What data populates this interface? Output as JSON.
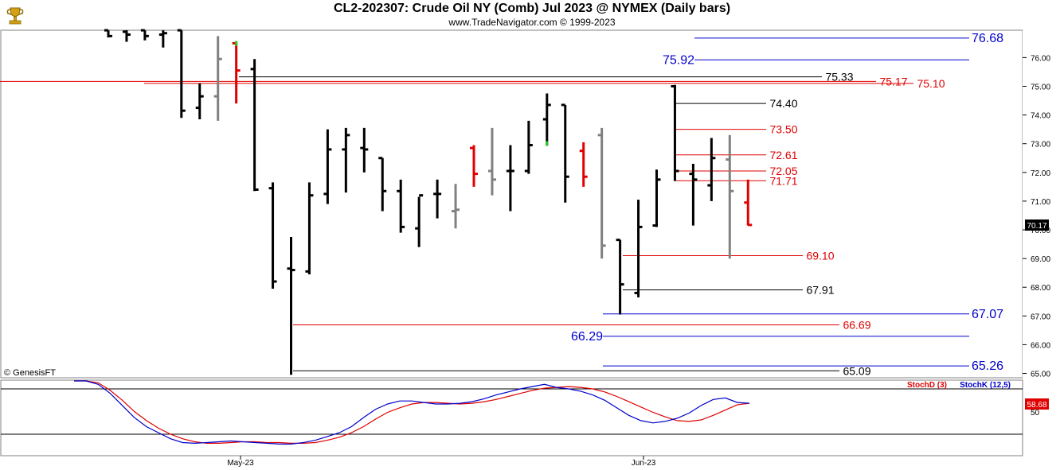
{
  "header": {
    "title": "CL2-202307:  Crude Oil NY (Comb) Jul 2023 @ NYMEX  (Daily bars)",
    "subtitle": "www.TradeNavigator.com © 1999-2023",
    "source_label": "© GenesisFT",
    "logo_icon": "trophy-logo-icon"
  },
  "colors": {
    "up_bar": "#000000",
    "neutral_bar": "#808080",
    "down_bar": "#e00000",
    "highlight_tick": "#22cc22",
    "level_black": "#000000",
    "level_red": "#e00000",
    "level_blue": "#0000cc",
    "stoch_d": "#e00000",
    "stoch_k": "#0000cc",
    "last_price_bg": "#000000",
    "stoch_value_bg": "#e00000"
  },
  "chart_data": {
    "type": "ohlc",
    "ylim": [
      64.9,
      76.9
    ],
    "y_ticks": [
      "76.00",
      "75.00",
      "74.00",
      "73.00",
      "72.00",
      "71.00",
      "70.00",
      "69.00",
      "68.00",
      "67.00",
      "66.00",
      "65.00"
    ],
    "last_price_label": "70.17",
    "x_labels": [
      "May-23",
      "Jun-23"
    ],
    "bars": [
      {
        "o": 76.95,
        "h": 76.95,
        "l": 76.7,
        "c": 76.75,
        "t": "up"
      },
      {
        "o": 76.9,
        "h": 76.95,
        "l": 76.55,
        "c": 76.8,
        "t": "up"
      },
      {
        "o": 76.95,
        "h": 76.95,
        "l": 76.6,
        "c": 76.75,
        "t": "up"
      },
      {
        "o": 76.8,
        "h": 76.95,
        "l": 76.35,
        "c": 76.85,
        "t": "up"
      },
      {
        "o": 76.95,
        "h": 76.95,
        "l": 73.9,
        "c": 74.15,
        "t": "up"
      },
      {
        "o": 74.25,
        "h": 75.1,
        "l": 73.85,
        "c": 74.65,
        "t": "up"
      },
      {
        "o": 74.65,
        "h": 76.75,
        "l": 73.8,
        "c": 75.95,
        "t": "gray"
      },
      {
        "o": 76.5,
        "h": 76.55,
        "l": 74.4,
        "c": 75.55,
        "t": "down",
        "g": "h"
      },
      {
        "o": 75.6,
        "h": 75.95,
        "l": 71.35,
        "c": 71.4,
        "t": "up"
      },
      {
        "o": 71.45,
        "h": 71.65,
        "l": 67.95,
        "c": 68.2,
        "t": "up"
      },
      {
        "o": 68.65,
        "h": 69.75,
        "l": 64.95,
        "c": 68.6,
        "t": "up"
      },
      {
        "o": 68.55,
        "h": 71.65,
        "l": 68.45,
        "c": 71.2,
        "t": "up"
      },
      {
        "o": 71.25,
        "h": 73.5,
        "l": 70.9,
        "c": 72.8,
        "t": "up"
      },
      {
        "o": 72.8,
        "h": 73.55,
        "l": 71.3,
        "c": 73.3,
        "t": "up"
      },
      {
        "o": 72.85,
        "h": 73.55,
        "l": 72.0,
        "c": 72.8,
        "t": "up"
      },
      {
        "o": 72.5,
        "h": 72.5,
        "l": 70.65,
        "c": 71.35,
        "t": "up"
      },
      {
        "o": 71.35,
        "h": 71.75,
        "l": 69.9,
        "c": 70.1,
        "t": "up"
      },
      {
        "o": 70.05,
        "h": 71.15,
        "l": 69.4,
        "c": 71.2,
        "t": "up"
      },
      {
        "o": 71.25,
        "h": 71.75,
        "l": 70.4,
        "c": 71.25,
        "t": "up"
      },
      {
        "o": 70.65,
        "h": 71.6,
        "l": 70.05,
        "c": 70.7,
        "t": "gray"
      },
      {
        "o": 72.85,
        "h": 72.95,
        "l": 71.5,
        "c": 71.95,
        "t": "down"
      },
      {
        "o": 72.05,
        "h": 73.55,
        "l": 71.2,
        "c": 71.75,
        "t": "gray"
      },
      {
        "o": 72.05,
        "h": 72.95,
        "l": 70.65,
        "c": 72.05,
        "t": "up"
      },
      {
        "o": 72.05,
        "h": 73.8,
        "l": 71.95,
        "c": 72.95,
        "t": "up"
      },
      {
        "o": 73.85,
        "h": 74.75,
        "l": 72.95,
        "c": 74.35,
        "t": "up",
        "g": "l"
      },
      {
        "o": 74.35,
        "h": 74.35,
        "l": 70.95,
        "c": 71.85,
        "t": "up"
      },
      {
        "o": 72.75,
        "h": 73.05,
        "l": 71.5,
        "c": 71.85,
        "t": "down"
      },
      {
        "o": 73.3,
        "h": 73.55,
        "l": 69.0,
        "c": 69.45,
        "t": "gray"
      },
      {
        "o": 69.65,
        "h": 69.65,
        "l": 67.05,
        "c": 68.1,
        "t": "up"
      },
      {
        "o": 67.8,
        "h": 71.05,
        "l": 67.65,
        "c": 70.1,
        "t": "up"
      },
      {
        "o": 70.15,
        "h": 72.1,
        "l": 70.1,
        "c": 71.75,
        "t": "up"
      },
      {
        "o": 75.0,
        "h": 75.05,
        "l": 71.7,
        "c": 72.05,
        "t": "up"
      },
      {
        "o": 71.95,
        "h": 72.3,
        "l": 70.15,
        "c": 71.75,
        "t": "up"
      },
      {
        "o": 71.55,
        "h": 73.2,
        "l": 71.0,
        "c": 72.5,
        "t": "up"
      },
      {
        "o": 72.45,
        "h": 73.3,
        "l": 69.0,
        "c": 71.35,
        "t": "gray"
      },
      {
        "o": 70.95,
        "h": 71.75,
        "l": 70.15,
        "c": 70.17,
        "t": "down"
      }
    ],
    "levels": [
      {
        "v": 76.68,
        "label": "76.68",
        "color": "blue"
      },
      {
        "v": 75.92,
        "label": "75.92",
        "color": "blue"
      },
      {
        "v": 75.33,
        "label": "75.33",
        "color": "black"
      },
      {
        "v": 75.17,
        "label": "75.17",
        "color": "red"
      },
      {
        "v": 75.1,
        "label": "75.10",
        "color": "red"
      },
      {
        "v": 74.4,
        "label": "74.40",
        "color": "black"
      },
      {
        "v": 73.5,
        "label": "73.50",
        "color": "red"
      },
      {
        "v": 72.61,
        "label": "72.61",
        "color": "red"
      },
      {
        "v": 72.05,
        "label": "72.05",
        "color": "red"
      },
      {
        "v": 71.71,
        "label": "71.71",
        "color": "red"
      },
      {
        "v": 69.1,
        "label": "69.10",
        "color": "red"
      },
      {
        "v": 67.91,
        "label": "67.91",
        "color": "black"
      },
      {
        "v": 67.07,
        "label": "67.07",
        "color": "blue"
      },
      {
        "v": 66.69,
        "label": "66.69",
        "color": "red"
      },
      {
        "v": 66.29,
        "label": "66.29",
        "color": "blue"
      },
      {
        "v": 65.26,
        "label": "65.26",
        "color": "blue"
      },
      {
        "v": 65.09,
        "label": "65.09",
        "color": "black"
      }
    ],
    "stochastic": {
      "ylim": [
        0,
        100
      ],
      "ticks": [
        "50"
      ],
      "value_label": "58.68",
      "reference_lines": [
        80,
        20
      ],
      "series": [
        {
          "name": "StochD (3)",
          "color": "red",
          "values": [
            98,
            95,
            88,
            78,
            65,
            50,
            38,
            28,
            20,
            14,
            10,
            8,
            8,
            9,
            10,
            10,
            9,
            9,
            8,
            8,
            9,
            12,
            16,
            22,
            30,
            40,
            49,
            55,
            60,
            62,
            62,
            61,
            60,
            61,
            63,
            66,
            70,
            74,
            78,
            81,
            82,
            83,
            82,
            80,
            76,
            70,
            63,
            56,
            49,
            43,
            38,
            37,
            39,
            45,
            52,
            59,
            61
          ]
        },
        {
          "name": "StochK (12,5)",
          "color": "blue",
          "values": [
            102,
            96,
            86,
            74,
            58,
            42,
            30,
            22,
            14,
            9,
            8,
            9,
            10,
            11,
            10,
            9,
            8,
            7,
            7,
            9,
            12,
            17,
            22,
            30,
            42,
            53,
            60,
            64,
            64,
            62,
            60,
            60,
            61,
            63,
            67,
            72,
            76,
            80,
            83,
            86,
            82,
            80,
            77,
            72,
            65,
            55,
            45,
            38,
            35,
            37,
            41,
            48,
            58,
            66,
            68,
            62,
            61
          ]
        }
      ]
    }
  }
}
